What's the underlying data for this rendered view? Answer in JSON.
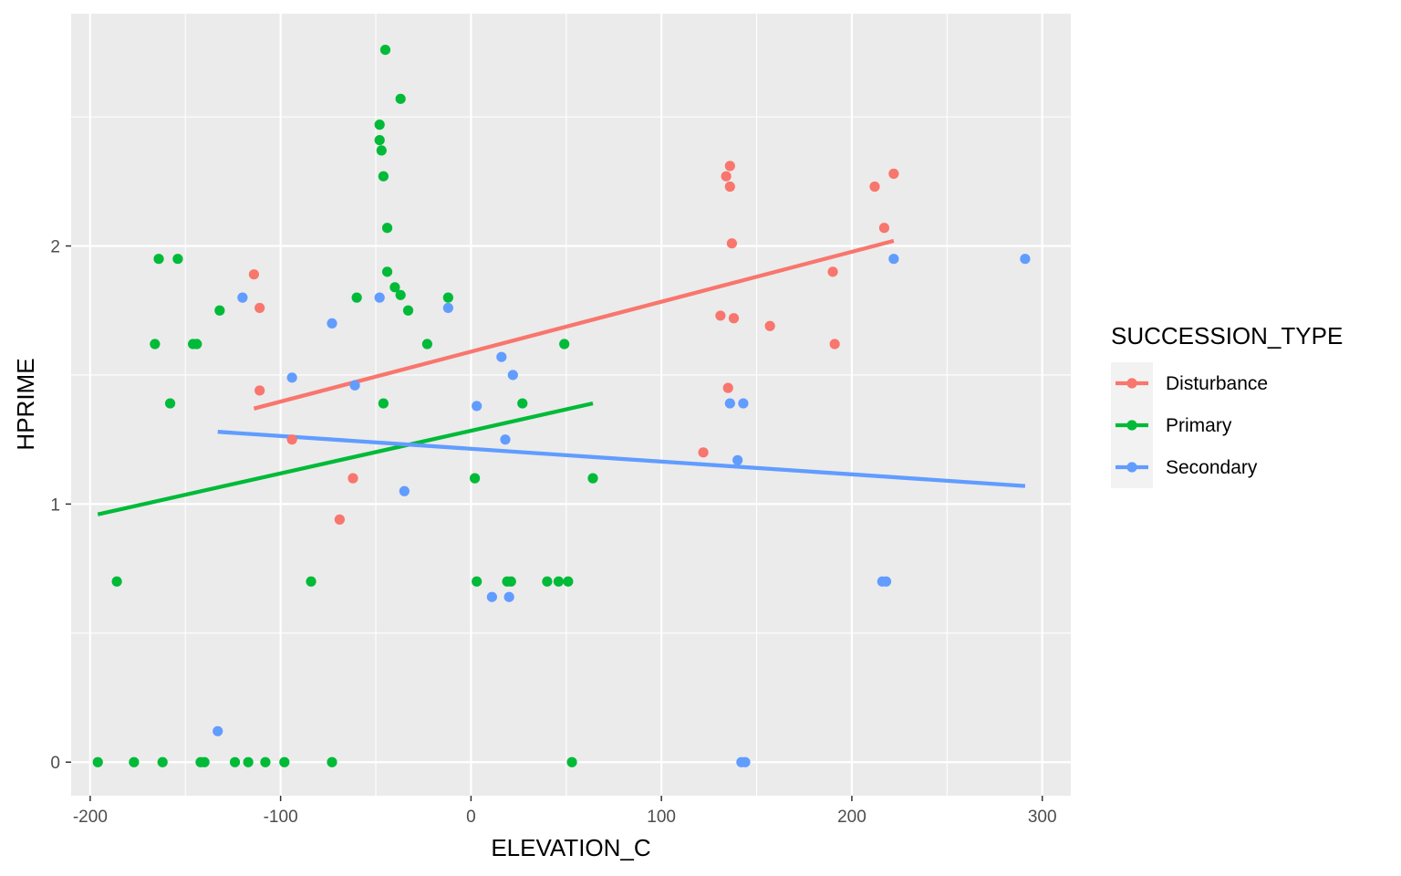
{
  "chart_data": {
    "type": "scatter",
    "title": "",
    "xlabel": "ELEVATION_C",
    "ylabel": "HPRIME",
    "xlim": [
      -210,
      315
    ],
    "ylim": [
      -0.13,
      2.9
    ],
    "x_ticks": [
      -200,
      -100,
      0,
      100,
      200,
      300
    ],
    "x_tick_labels": [
      "-200",
      "-100",
      "0",
      "100",
      "200",
      "300"
    ],
    "y_ticks": [
      0,
      1,
      2
    ],
    "y_tick_labels": [
      "0",
      "1",
      "2"
    ],
    "grid": true,
    "legend": {
      "title": "SUCCESSION_TYPE",
      "position": "right",
      "entries": [
        "Disturbance",
        "Primary",
        "Secondary"
      ]
    },
    "series": [
      {
        "name": "Disturbance",
        "color": "#F8766D",
        "points": [
          [
            -114,
            1.89
          ],
          [
            -111,
            1.76
          ],
          [
            -111,
            1.44
          ],
          [
            -94,
            1.25
          ],
          [
            -62,
            1.1
          ],
          [
            -69,
            0.94
          ],
          [
            122,
            1.2
          ],
          [
            131,
            1.73
          ],
          [
            134,
            2.27
          ],
          [
            135,
            1.45
          ],
          [
            136,
            2.31
          ],
          [
            136,
            2.23
          ],
          [
            137,
            2.01
          ],
          [
            138,
            1.72
          ],
          [
            157,
            1.69
          ],
          [
            190,
            1.9
          ],
          [
            191,
            1.62
          ],
          [
            212,
            2.23
          ],
          [
            217,
            2.07
          ],
          [
            222,
            2.28
          ]
        ],
        "trend": [
          [
            -114,
            1.37
          ],
          [
            222,
            2.02
          ]
        ]
      },
      {
        "name": "Primary",
        "color": "#00BA38",
        "points": [
          [
            -196,
            0.0
          ],
          [
            -186,
            0.7
          ],
          [
            -177,
            0.0
          ],
          [
            -166,
            1.62
          ],
          [
            -164,
            1.95
          ],
          [
            -162,
            0.0
          ],
          [
            -158,
            1.39
          ],
          [
            -154,
            1.95
          ],
          [
            -146,
            1.62
          ],
          [
            -144,
            1.62
          ],
          [
            -142,
            0.0
          ],
          [
            -140,
            0.0
          ],
          [
            -132,
            1.75
          ],
          [
            -124,
            0.0
          ],
          [
            -117,
            0.0
          ],
          [
            -108,
            0.0
          ],
          [
            -98,
            0.0
          ],
          [
            -84,
            0.7
          ],
          [
            -73,
            0.0
          ],
          [
            -60,
            1.8
          ],
          [
            -48,
            2.47
          ],
          [
            -48,
            2.41
          ],
          [
            -47,
            2.37
          ],
          [
            -46,
            2.27
          ],
          [
            -46,
            1.39
          ],
          [
            -45,
            2.76
          ],
          [
            -44,
            2.07
          ],
          [
            -44,
            1.9
          ],
          [
            -40,
            1.84
          ],
          [
            -37,
            2.57
          ],
          [
            -37,
            1.81
          ],
          [
            -33,
            1.75
          ],
          [
            -23,
            1.62
          ],
          [
            -12,
            1.8
          ],
          [
            2,
            1.1
          ],
          [
            3,
            0.7
          ],
          [
            19,
            0.7
          ],
          [
            21,
            0.7
          ],
          [
            27,
            1.39
          ],
          [
            40,
            0.7
          ],
          [
            46,
            0.7
          ],
          [
            49,
            1.62
          ],
          [
            51,
            0.7
          ],
          [
            53,
            0.0
          ],
          [
            64,
            1.1
          ]
        ],
        "trend": [
          [
            -196,
            0.96
          ],
          [
            64,
            1.39
          ]
        ]
      },
      {
        "name": "Secondary",
        "color": "#619CFF",
        "points": [
          [
            -133,
            0.12
          ],
          [
            -120,
            1.8
          ],
          [
            -94,
            1.49
          ],
          [
            -73,
            1.7
          ],
          [
            -61,
            1.46
          ],
          [
            -48,
            1.8
          ],
          [
            -35,
            1.05
          ],
          [
            -12,
            1.76
          ],
          [
            3,
            1.38
          ],
          [
            11,
            0.64
          ],
          [
            16,
            1.57
          ],
          [
            18,
            1.25
          ],
          [
            20,
            0.64
          ],
          [
            22,
            1.5
          ],
          [
            136,
            1.39
          ],
          [
            140,
            1.17
          ],
          [
            142,
            0.0
          ],
          [
            143,
            1.39
          ],
          [
            144,
            0.0
          ],
          [
            216,
            0.7
          ],
          [
            218,
            0.7
          ],
          [
            222,
            1.95
          ],
          [
            291,
            1.95
          ]
        ],
        "trend": [
          [
            -133,
            1.28
          ],
          [
            291,
            1.07
          ]
        ]
      }
    ]
  }
}
